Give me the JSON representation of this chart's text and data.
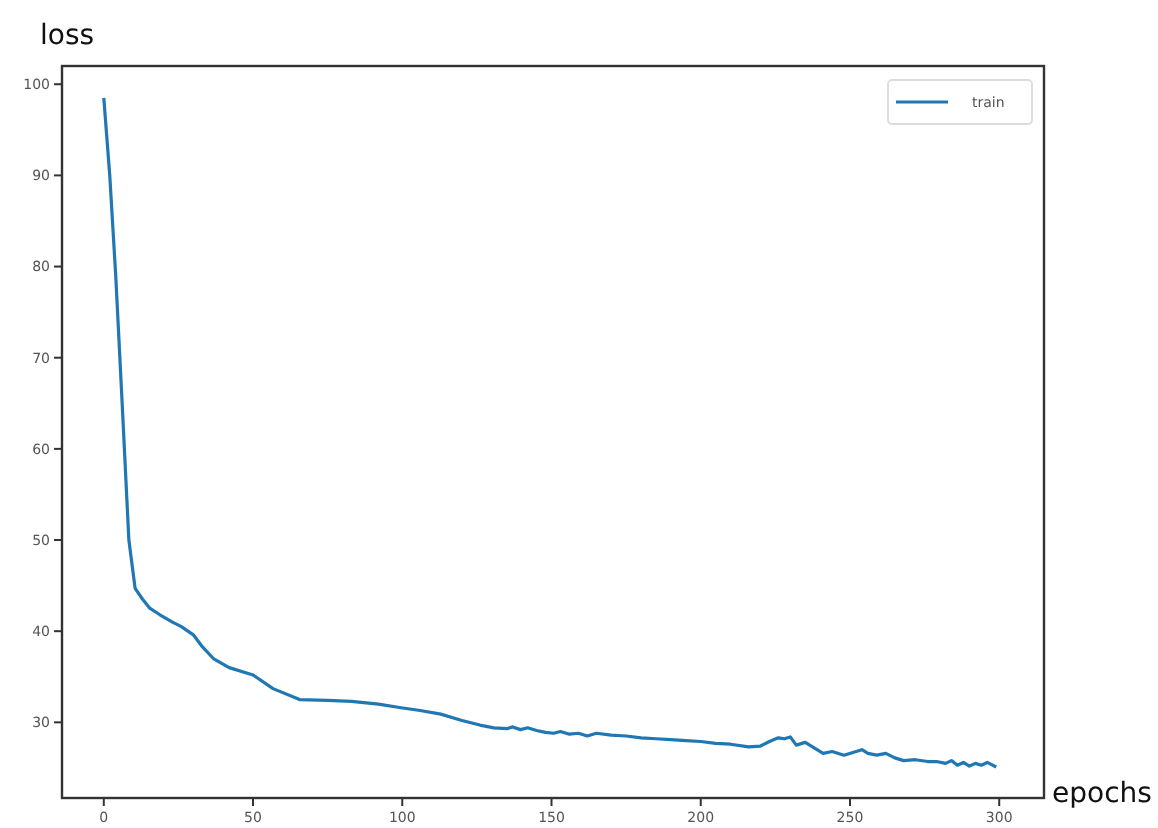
{
  "chart_data": {
    "type": "line",
    "xlabel": "epochs",
    "ylabel": "loss",
    "xlim": [
      -14,
      315
    ],
    "ylim": [
      21.7,
      102
    ],
    "xticks": [
      0,
      50,
      100,
      150,
      200,
      250,
      300
    ],
    "yticks": [
      30,
      40,
      50,
      60,
      70,
      80,
      90,
      100
    ],
    "grid": false,
    "legend": "top right",
    "series": [
      {
        "name": "train",
        "color": "#1f77b4",
        "x": [
          0,
          2,
          4,
          6.2,
          8.4,
          10.5,
          13,
          15.5,
          18.8,
          23,
          26,
          30,
          33,
          36.7,
          42,
          50,
          56.7,
          65.6,
          75,
          83,
          92,
          99.6,
          106,
          112.9,
          120,
          126,
          130.7,
          135,
          137,
          139.6,
          142,
          145,
          148,
          150.7,
          153,
          156,
          159,
          162,
          165,
          170,
          175,
          180,
          185,
          190,
          195,
          200,
          205,
          210,
          216,
          220,
          223,
          226,
          228,
          230,
          232,
          235,
          238,
          241,
          244,
          248,
          251,
          254,
          256,
          259,
          262,
          265,
          268,
          272,
          276,
          279,
          282,
          284,
          286,
          288,
          290,
          292,
          294,
          296,
          299
        ],
        "values": [
          98.5,
          90,
          79,
          64.7,
          50,
          44.7,
          43.5,
          42.5,
          41.8,
          41,
          40.5,
          39.6,
          38.3,
          37,
          36,
          35.2,
          33.7,
          32.5,
          32.4,
          32.3,
          32,
          31.6,
          31.3,
          30.9,
          30.2,
          29.7,
          29.4,
          29.3,
          29.5,
          29.2,
          29.4,
          29.1,
          28.9,
          28.8,
          29,
          28.7,
          28.8,
          28.5,
          28.8,
          28.6,
          28.5,
          28.3,
          28.2,
          28.1,
          28,
          27.9,
          27.7,
          27.6,
          27.3,
          27.4,
          27.9,
          28.3,
          28.2,
          28.4,
          27.5,
          27.8,
          27.2,
          26.6,
          26.8,
          26.4,
          26.7,
          27,
          26.6,
          26.4,
          26.6,
          26.1,
          25.8,
          25.9,
          25.7,
          25.7,
          25.5,
          25.8,
          25.3,
          25.6,
          25.2,
          25.5,
          25.3,
          25.6,
          25.1
        ]
      }
    ]
  }
}
